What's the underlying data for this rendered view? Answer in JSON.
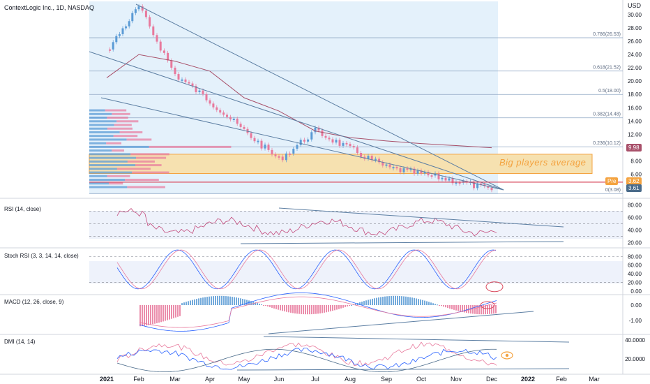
{
  "header": {
    "symbol_title": "ContextLogic Inc., 1D, NASDAQ",
    "currency": "USD"
  },
  "annotation_text": "Big players average",
  "badges": {
    "ma_value": "9.98",
    "pre_label": "Pre",
    "pre_value": "3.62",
    "last_value": "3.61"
  },
  "fib_labels": [
    "0.786(26.53)",
    "0.618(21.52)",
    "0.5(18.00)",
    "0.382(14.48)",
    "0.236(10.12)",
    "0(3.08)"
  ],
  "panes": {
    "rsi": "RSI (14, close)",
    "stoch": "Stoch RSI (3, 3, 14, 14, close)",
    "macd": "MACD (12, 26, close, 9)",
    "dmi": "DMI (14, 14)"
  },
  "colors": {
    "up": "#5b9bd5",
    "down": "#e8799c",
    "ma": "#a8506a",
    "trend": "#5d7fa3",
    "zone": "#f6e1b0",
    "shade": "#e4f1fb",
    "annot": "#f4a340"
  },
  "chart_data": {
    "type": "line",
    "x_ticks": [
      "2021",
      "Feb",
      "Mar",
      "Apr",
      "May",
      "Jun",
      "Jul",
      "Aug",
      "Sep",
      "Oct",
      "Nov",
      "Dec",
      "2022",
      "Feb",
      "Mar"
    ],
    "price_axis": {
      "ticks": [
        "30.00",
        "28.00",
        "26.00",
        "24.00",
        "22.00",
        "20.00",
        "18.00",
        "16.00",
        "14.00",
        "12.00",
        "10.00",
        "8.00",
        "6.00",
        "4.00"
      ],
      "ylim": [
        3,
        32
      ]
    },
    "series": [
      {
        "name": "ContextLogic Inc.",
        "x": [
          "Jan",
          "Feb",
          "Mar",
          "Apr",
          "May",
          "Jun",
          "Jul",
          "Aug",
          "Sep",
          "Oct",
          "Nov",
          "Dec"
        ],
        "values": [
          24.5,
          31.2,
          21,
          17,
          12.5,
          8.2,
          12.5,
          9.8,
          7,
          6,
          5,
          3.6
        ]
      }
    ],
    "fib_levels": [
      26.53,
      21.52,
      18.0,
      14.48,
      10.12,
      3.08
    ],
    "rsi_axis": {
      "ticks": [
        "80.00",
        "60.00",
        "40.00",
        "20.00"
      ]
    },
    "stoch_axis": {
      "ticks": [
        "80.00",
        "60.00",
        "40.00",
        "20.00",
        "0.00"
      ]
    },
    "macd_axis": {
      "ticks": [
        "0.00",
        "-1.00"
      ]
    },
    "dmi_axis": {
      "ticks": [
        "40.0000",
        "20.0000"
      ]
    }
  }
}
